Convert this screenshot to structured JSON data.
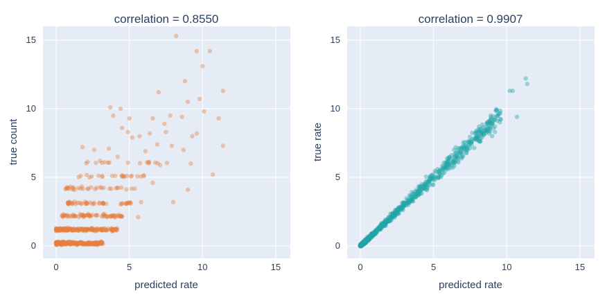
{
  "chart_data": [
    {
      "type": "scatter",
      "title": "correlation = 0.8550",
      "xlabel": "predicted rate",
      "ylabel": "true count",
      "xlim": [
        -0.9,
        16
      ],
      "ylim": [
        -0.9,
        16
      ],
      "xticks": [
        0,
        5,
        10,
        15
      ],
      "yticks": [
        0,
        5,
        10,
        15
      ],
      "grid": true,
      "color": "#e5803e",
      "opacity": 0.4,
      "dense_bands": [
        {
          "y": 0.2,
          "x_range": [
            0.0,
            3.2
          ],
          "n": 240
        },
        {
          "y": 1.2,
          "x_range": [
            0.0,
            4.2
          ],
          "n": 190
        },
        {
          "y": 2.2,
          "x_range": [
            0.4,
            4.6
          ],
          "n": 70
        },
        {
          "y": 3.1,
          "x_range": [
            0.8,
            5.4
          ],
          "n": 48
        },
        {
          "y": 4.2,
          "x_range": [
            0.6,
            5.6
          ],
          "n": 32
        },
        {
          "y": 5.1,
          "x_range": [
            1.5,
            6.2
          ],
          "n": 22
        },
        {
          "y": 6.1,
          "x_range": [
            2.0,
            7.6
          ],
          "n": 16
        }
      ],
      "points": [
        [
          3.7,
          10.1
        ],
        [
          4.4,
          10.0
        ],
        [
          7.0,
          11.2
        ],
        [
          8.2,
          15.3
        ],
        [
          8.8,
          12.0
        ],
        [
          9.6,
          14.2
        ],
        [
          10.0,
          13.1
        ],
        [
          10.5,
          14.2
        ],
        [
          11.4,
          11.3
        ],
        [
          9.8,
          10.7
        ],
        [
          9.0,
          10.5
        ],
        [
          10.1,
          9.8
        ],
        [
          7.8,
          9.5
        ],
        [
          8.6,
          9.4
        ],
        [
          7.4,
          8.9
        ],
        [
          6.6,
          9.3
        ],
        [
          5.0,
          9.3
        ],
        [
          3.9,
          9.5
        ],
        [
          4.5,
          8.6
        ],
        [
          4.9,
          8.3
        ],
        [
          5.7,
          8.0
        ],
        [
          6.4,
          8.2
        ],
        [
          7.5,
          8.3
        ],
        [
          9.3,
          8.0
        ],
        [
          9.6,
          8.2
        ],
        [
          11.1,
          9.3
        ],
        [
          11.4,
          7.3
        ],
        [
          10.7,
          5.2
        ],
        [
          9.0,
          4.1
        ],
        [
          8.0,
          3.2
        ],
        [
          5.8,
          3.2
        ],
        [
          5.6,
          2.1
        ],
        [
          4.2,
          6.5
        ],
        [
          3.6,
          7.1
        ],
        [
          6.1,
          6.9
        ],
        [
          6.9,
          7.4
        ],
        [
          7.9,
          7.3
        ],
        [
          8.7,
          7.0
        ],
        [
          7.1,
          5.9
        ],
        [
          9.2,
          6.0
        ],
        [
          2.6,
          7.0
        ],
        [
          1.8,
          7.2
        ],
        [
          3.0,
          6.2
        ],
        [
          5.2,
          7.9
        ],
        [
          6.6,
          4.6
        ]
      ]
    },
    {
      "type": "scatter",
      "title": "correlation = 0.9907",
      "xlabel": "predicted rate",
      "ylabel": "true rate",
      "xlim": [
        -0.9,
        16
      ],
      "ylim": [
        -0.9,
        16
      ],
      "xticks": [
        0,
        5,
        10,
        15
      ],
      "yticks": [
        0,
        5,
        10,
        15
      ],
      "grid": true,
      "color": "#22a5a7",
      "opacity": 0.4,
      "diagonal_cloud": {
        "x_range": [
          0.0,
          9.6
        ],
        "slope": 1.0,
        "n": 900
      },
      "points": [
        [
          10.2,
          11.3
        ],
        [
          10.4,
          11.3
        ],
        [
          11.3,
          12.2
        ],
        [
          11.4,
          11.8
        ],
        [
          10.7,
          9.4
        ],
        [
          9.4,
          9.6
        ],
        [
          8.9,
          9.5
        ],
        [
          9.1,
          9.2
        ],
        [
          8.6,
          8.7
        ],
        [
          8.3,
          7.9
        ],
        [
          7.9,
          7.8
        ],
        [
          8.8,
          8.2
        ],
        [
          7.6,
          7.4
        ],
        [
          7.2,
          7.3
        ],
        [
          6.9,
          6.8
        ],
        [
          6.4,
          7.0
        ],
        [
          6.7,
          6.1
        ],
        [
          9.0,
          8.0
        ],
        [
          9.2,
          8.3
        ],
        [
          8.5,
          8.4
        ]
      ]
    }
  ]
}
